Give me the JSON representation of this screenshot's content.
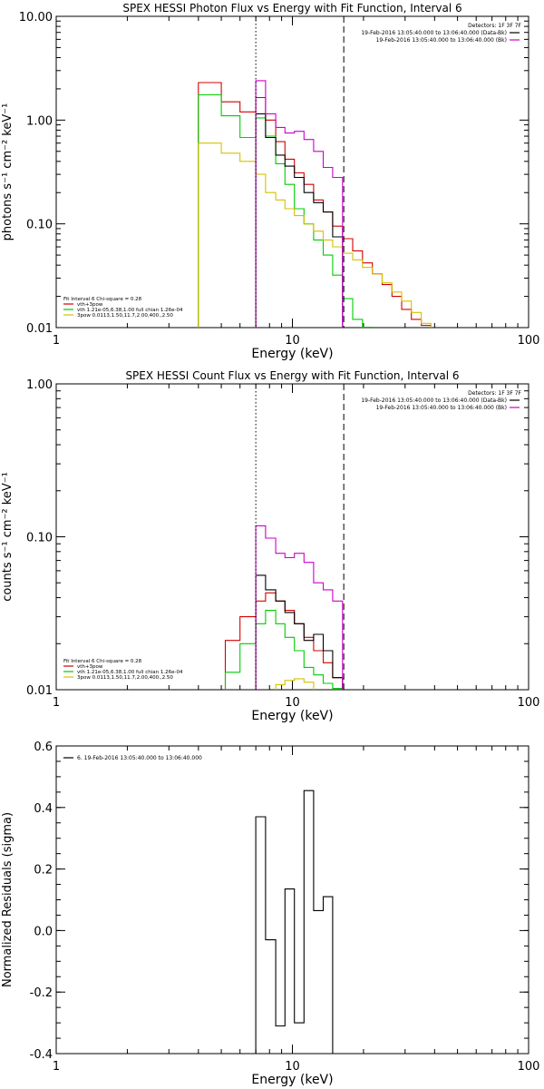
{
  "chart_data": [
    {
      "type": "line",
      "title": "SPEX HESSI Photon Flux vs Energy with Fit Function, Interval 6",
      "xlabel": "Energy (keV)",
      "ylabel": "photons s⁻¹ cm⁻² keV⁻¹",
      "xscale": "log",
      "yscale": "log",
      "xlim": [
        1,
        100
      ],
      "ylim": [
        0.01,
        10
      ],
      "x_ticks": [
        1,
        10,
        100
      ],
      "x_tick_labels": [
        "1",
        "10",
        "100"
      ],
      "y_ticks": [
        0.01,
        0.1,
        1,
        10
      ],
      "y_tick_labels": [
        "0.01",
        "0.10",
        "1.00",
        "10.00"
      ],
      "vlines": [
        {
          "x": 7.0,
          "style": "dotted",
          "color": "#000000"
        },
        {
          "x": 16.5,
          "style": "dashed",
          "color": "#000000"
        }
      ],
      "legend_right": [
        {
          "text": "Detectors: 1F 3F 7F",
          "color": null
        },
        {
          "text": "19-Feb-2016 13:05:40.000 to 13:06:40.000 (Data-Bk)",
          "color": "#000000"
        },
        {
          "text": "19-Feb-2016 13:05:40.000 to 13:06:40.000 (Bk)",
          "color": "#cc00cc"
        }
      ],
      "legend_left": [
        {
          "text": "Fit Interval 6   Chi-square = 0.28",
          "color": null
        },
        {
          "text": "vth+3pow",
          "color": "#d40000"
        },
        {
          "text": "vth 1.21e-05,6.38,1.00  full chian 1.26e-04",
          "color": "#00cc00"
        },
        {
          "text": "3pow 0.0113,1.50,11.7,2.00,400.,2.50",
          "color": "#d4c000"
        }
      ],
      "series": [
        {
          "name": "vth+3pow",
          "color": "#d40000",
          "edges": [
            4.0,
            5.0,
            6.0,
            7.0,
            7.7,
            8.5,
            9.3,
            10.2,
            11.2,
            12.3,
            13.5,
            14.8,
            16.3,
            18.0,
            19.8,
            21.8,
            24.0,
            26.4,
            29.0,
            31.9,
            35.1,
            38.6
          ],
          "values": [
            2.3,
            1.5,
            1.2,
            1.65,
            1.0,
            0.62,
            0.42,
            0.31,
            0.24,
            0.17,
            0.13,
            0.095,
            0.072,
            0.055,
            0.042,
            0.033,
            0.026,
            0.02,
            0.015,
            0.012,
            0.0105
          ]
        },
        {
          "name": "vth",
          "color": "#00cc00",
          "edges": [
            4.0,
            5.0,
            6.0,
            7.0,
            7.7,
            8.5,
            9.3,
            10.2,
            11.2,
            12.3,
            13.5,
            14.8,
            16.3,
            18.0,
            19.8,
            21.8
          ],
          "values": [
            1.75,
            1.1,
            0.68,
            1.05,
            0.7,
            0.38,
            0.24,
            0.14,
            0.1,
            0.07,
            0.05,
            0.032,
            0.019,
            0.012,
            0.0101
          ]
        },
        {
          "name": "3pow",
          "color": "#d4c000",
          "edges": [
            4.0,
            5.0,
            6.0,
            7.0,
            7.7,
            8.5,
            9.3,
            10.2,
            11.2,
            12.3,
            13.5,
            14.8,
            16.3,
            18.0,
            19.8,
            21.8,
            24.0,
            26.4,
            29.0,
            31.9,
            35.1,
            38.6
          ],
          "values": [
            0.6,
            0.48,
            0.4,
            0.3,
            0.2,
            0.17,
            0.14,
            0.12,
            0.1,
            0.085,
            0.07,
            0.06,
            0.052,
            0.045,
            0.038,
            0.033,
            0.027,
            0.022,
            0.018,
            0.014,
            0.011
          ]
        },
        {
          "name": "Data-Bk",
          "color": "#000000",
          "edges": [
            7.0,
            7.7,
            8.5,
            9.3,
            10.2,
            11.2,
            12.3,
            13.5,
            14.8,
            16.3
          ],
          "values": [
            1.15,
            0.68,
            0.46,
            0.36,
            0.28,
            0.2,
            0.16,
            0.13,
            0.075
          ]
        },
        {
          "name": "Bk",
          "color": "#cc00cc",
          "edges": [
            7.0,
            7.7,
            8.5,
            9.3,
            10.2,
            11.2,
            12.3,
            13.5,
            14.8,
            16.3
          ],
          "values": [
            2.4,
            1.15,
            0.85,
            0.75,
            0.78,
            0.65,
            0.5,
            0.35,
            0.28
          ]
        }
      ]
    },
    {
      "type": "line",
      "title": "SPEX HESSI Count Flux vs Energy with Fit Function, Interval 6",
      "xlabel": "Energy (keV)",
      "ylabel": "counts s⁻¹ cm⁻² keV⁻¹",
      "xscale": "log",
      "yscale": "log",
      "xlim": [
        1,
        100
      ],
      "ylim": [
        0.01,
        1
      ],
      "x_ticks": [
        1,
        10,
        100
      ],
      "x_tick_labels": [
        "1",
        "10",
        "100"
      ],
      "y_ticks": [
        0.01,
        0.1,
        1
      ],
      "y_tick_labels": [
        "0.01",
        "0.10",
        "1.00"
      ],
      "vlines": [
        {
          "x": 7.0,
          "style": "dotted",
          "color": "#000000"
        },
        {
          "x": 16.5,
          "style": "dashed",
          "color": "#000000"
        }
      ],
      "legend_right": [
        {
          "text": "Detectors: 1F 3F 7F",
          "color": null
        },
        {
          "text": "19-Feb-2016 13:05:40.000 to 13:06:40.000 (Data-Bk)",
          "color": "#000000"
        },
        {
          "text": "19-Feb-2016 13:05:40.000 to 13:06:40.000 (Bk)",
          "color": "#cc00cc"
        }
      ],
      "legend_left": [
        {
          "text": "Fit Interval 6   Chi-square = 0.28",
          "color": null
        },
        {
          "text": "vth+3pow",
          "color": "#d40000"
        },
        {
          "text": "vth 1.21e-05,6.38,1.00  full chian 1.26e-04",
          "color": "#00cc00"
        },
        {
          "text": "3pow 0.0113,1.50,11.7,2.00,400.,2.50",
          "color": "#d4c000"
        }
      ],
      "series": [
        {
          "name": "vth+3pow",
          "color": "#d40000",
          "edges": [
            5.2,
            6.0,
            7.0,
            7.7,
            8.5,
            9.3,
            10.2,
            11.2,
            12.3,
            13.5,
            14.8,
            16.3
          ],
          "values": [
            0.021,
            0.03,
            0.038,
            0.043,
            0.038,
            0.033,
            0.027,
            0.022,
            0.018,
            0.015,
            0.012
          ]
        },
        {
          "name": "vth",
          "color": "#00cc00",
          "edges": [
            5.2,
            6.0,
            7.0,
            7.7,
            8.5,
            9.3,
            10.2,
            11.2,
            12.3,
            13.5,
            14.8,
            16.3
          ],
          "values": [
            0.013,
            0.02,
            0.027,
            0.033,
            0.027,
            0.022,
            0.018,
            0.014,
            0.0125,
            0.011,
            0.0102
          ]
        },
        {
          "name": "3pow",
          "color": "#d4c000",
          "edges": [
            8.5,
            9.3,
            10.2,
            11.2,
            12.3
          ],
          "values": [
            0.0108,
            0.0115,
            0.0118,
            0.0112
          ]
        },
        {
          "name": "Data-Bk",
          "color": "#000000",
          "edges": [
            7.0,
            7.7,
            8.5,
            9.3,
            10.2,
            11.2,
            12.3,
            13.5,
            14.8,
            16.3
          ],
          "values": [
            0.056,
            0.045,
            0.038,
            0.032,
            0.027,
            0.021,
            0.023,
            0.018,
            0.012
          ]
        },
        {
          "name": "Bk",
          "color": "#cc00cc",
          "edges": [
            7.0,
            7.7,
            8.5,
            9.3,
            10.2,
            11.2,
            12.3,
            13.5,
            14.8,
            16.3
          ],
          "values": [
            0.118,
            0.098,
            0.078,
            0.073,
            0.078,
            0.068,
            0.05,
            0.045,
            0.038
          ]
        }
      ]
    },
    {
      "type": "line",
      "title": "",
      "xlabel": "Energy (keV)",
      "ylabel": "Normalized Residuals (sigma)",
      "xscale": "log",
      "yscale": "linear",
      "xlim": [
        1,
        100
      ],
      "ylim": [
        -0.4,
        0.6
      ],
      "x_ticks": [
        1,
        10,
        100
      ],
      "x_tick_labels": [
        "1",
        "10",
        "100"
      ],
      "y_ticks": [
        -0.4,
        -0.2,
        0.0,
        0.2,
        0.4,
        0.6
      ],
      "y_tick_labels": [
        "-0.4",
        "-0.2",
        "0.0",
        "0.2",
        "0.4",
        "0.6"
      ],
      "legend_left": [
        {
          "text": "6. 19-Feb-2016 13:05:40.000 to 13:06:40.000",
          "color": "#000000"
        }
      ],
      "series": [
        {
          "name": "6. 19-Feb-2016 13:05:40.000 to 13:06:40.000",
          "color": "#000000",
          "edges": [
            7.0,
            7.7,
            8.5,
            9.3,
            10.2,
            11.2,
            12.3,
            13.5,
            14.8,
            16.3
          ],
          "values": [
            0.37,
            -0.03,
            -0.31,
            0.135,
            -0.3,
            0.455,
            0.065,
            0.11,
            -0.4
          ]
        }
      ]
    }
  ]
}
